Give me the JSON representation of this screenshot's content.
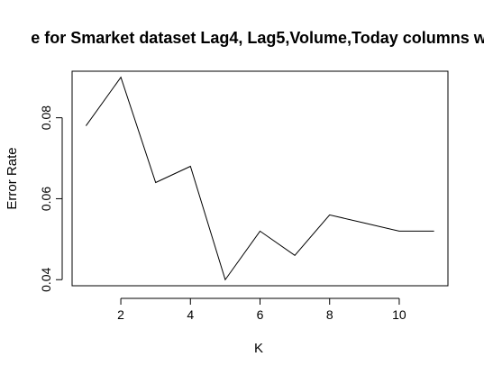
{
  "chart_data": {
    "type": "line",
    "title": "e for Smarket dataset Lag4, Lag5,Volume,Today columns w",
    "xlabel": "K",
    "ylabel": "Error Rate",
    "x": [
      1,
      2,
      3,
      4,
      5,
      6,
      7,
      8,
      9,
      10,
      11
    ],
    "series": [
      {
        "values": [
          0.078,
          0.09,
          0.064,
          0.068,
          0.04,
          0.052,
          0.046,
          0.056,
          0.054,
          0.052,
          0.052
        ]
      }
    ],
    "xlim": [
      0.6,
      11.4
    ],
    "ylim": [
      0.0385,
      0.0915
    ],
    "xticks": [
      2,
      4,
      6,
      8,
      10
    ],
    "yticks": [
      0.04,
      0.06,
      0.08
    ],
    "xtick_labels": [
      "2",
      "4",
      "6",
      "8",
      "10"
    ],
    "ytick_labels": [
      "0.04",
      "0.06",
      "0.08"
    ],
    "grid": false,
    "line_color": "#000000"
  }
}
